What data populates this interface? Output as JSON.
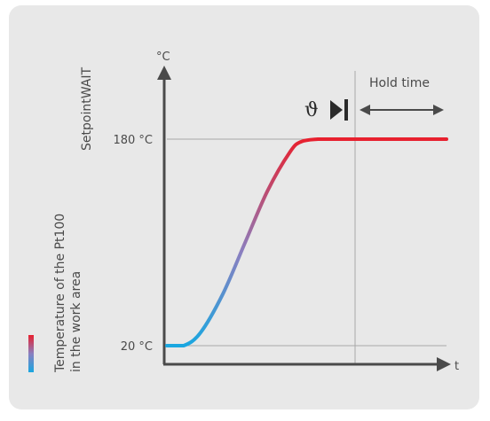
{
  "chart_data": {
    "type": "line",
    "y_unit": "°C",
    "x_unit": "t",
    "y_ticks": [
      "180 °C",
      "20 °C"
    ],
    "y_tick_values": [
      180,
      20
    ],
    "setpoint_label": "SetpointWAIT",
    "curve_label_line1": "Temperature of the Pt100",
    "curve_label_line2": "in the work area",
    "annotation_hold": "Hold time",
    "annotation_symbol": "ϑ",
    "series": [
      {
        "x": [
          0,
          0.3,
          0.6,
          1.0,
          1.4,
          1.8,
          2.2,
          2.4,
          2.7,
          3.0,
          4.0,
          5.0
        ],
        "values": [
          20,
          20,
          30,
          60,
          100,
          140,
          170,
          178,
          180,
          180,
          180,
          180
        ]
      }
    ],
    "hold_start_x": 3.3,
    "colors": {
      "cold": "#1aa7e0",
      "mid": "#8a7fc0",
      "hot": "#e8202e"
    }
  }
}
